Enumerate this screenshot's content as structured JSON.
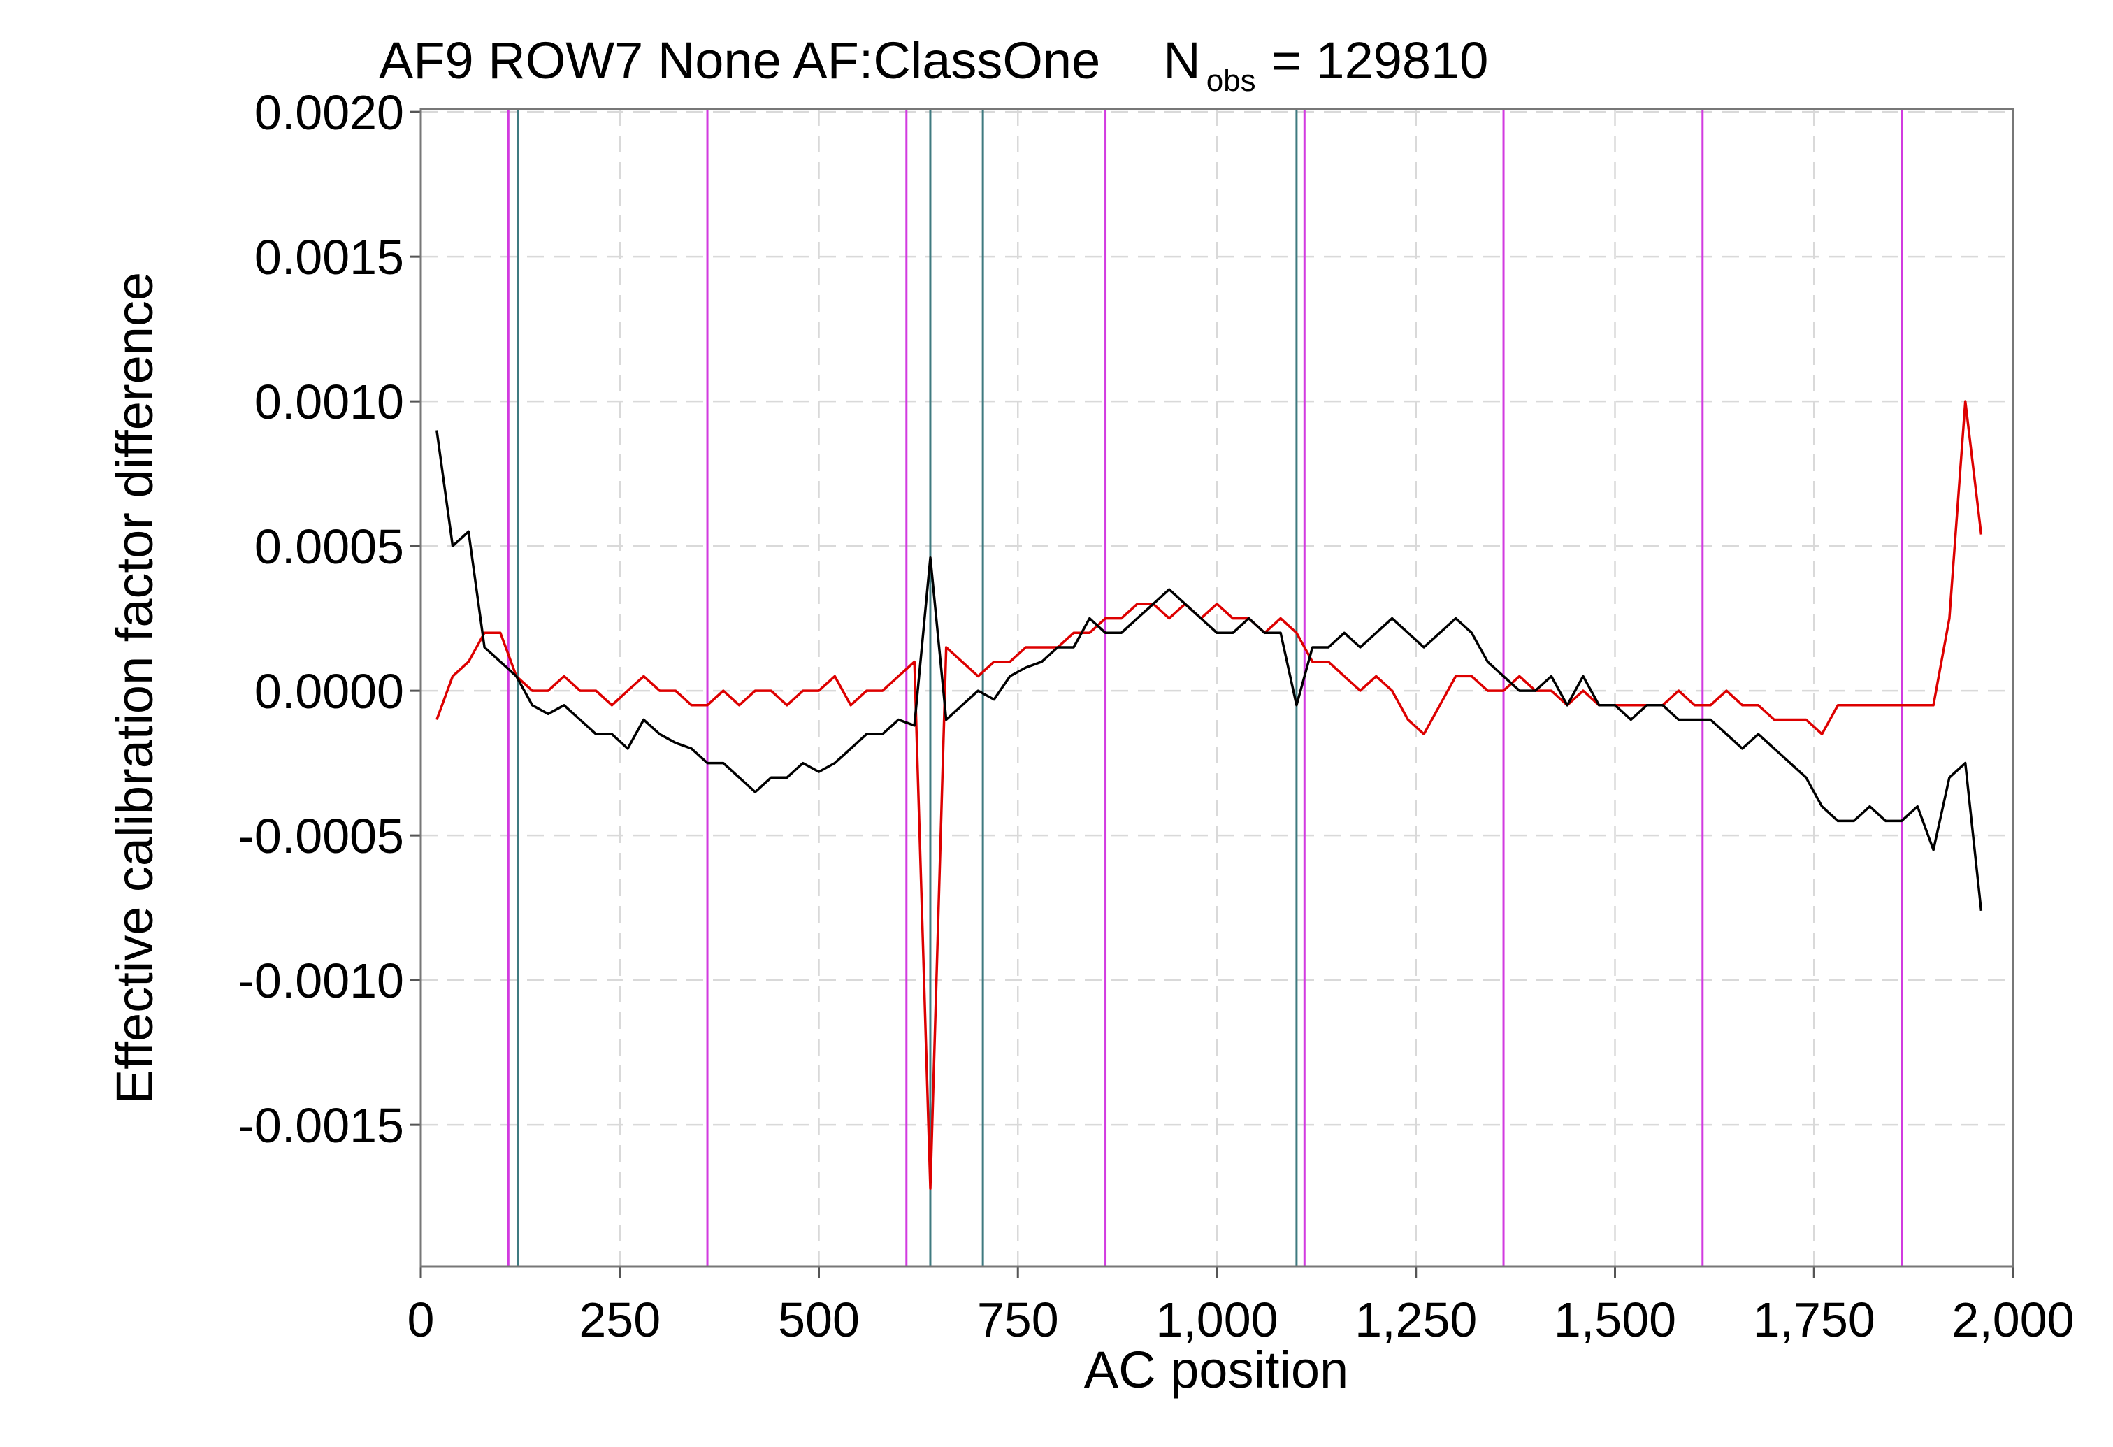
{
  "chart_data": {
    "type": "line",
    "title": "AF9 ROW7 None AF:ClassOne",
    "title_symbol": "N",
    "title_subscript": "obs",
    "title_suffix": "= 129810",
    "x_label": "AC position",
    "y_label": "Effective calibration factor difference",
    "xlim": [
      0,
      2000
    ],
    "ylim": [
      -0.00199,
      0.00201
    ],
    "xticks": [
      0,
      250,
      500,
      750,
      {
        "value": 1000,
        "label": "1,000"
      },
      {
        "value": 1250,
        "label": "1,250"
      },
      {
        "value": 1500,
        "label": "1,500"
      },
      {
        "value": 1750,
        "label": "1,750"
      },
      {
        "value": 2000,
        "label": "2,000"
      }
    ],
    "yticks": [
      {
        "value": -0.0015,
        "label": "-0.0015"
      },
      {
        "value": -0.001,
        "label": "-0.0010"
      },
      {
        "value": -0.0005,
        "label": "-0.0005"
      },
      {
        "value": 0,
        "label": "0.0000"
      },
      {
        "value": 0.0005,
        "label": "0.0005"
      },
      {
        "value": 0.001,
        "label": "0.0010"
      },
      {
        "value": 0.0015,
        "label": "0.0015"
      },
      {
        "value": 0.002,
        "label": "0.0020"
      }
    ],
    "grid": true,
    "vlines": [
      {
        "color": "#d23be0",
        "values": [
          110,
          360,
          610,
          860,
          1110,
          1360,
          1610,
          1860
        ]
      },
      {
        "color": "#3f7a80",
        "values": [
          122,
          640,
          706,
          1100
        ]
      }
    ],
    "x": [
      20,
      40,
      60,
      80,
      100,
      120,
      140,
      160,
      180,
      200,
      220,
      240,
      260,
      280,
      300,
      320,
      340,
      360,
      380,
      400,
      420,
      440,
      460,
      480,
      500,
      520,
      540,
      560,
      580,
      600,
      620,
      640,
      660,
      680,
      700,
      720,
      740,
      760,
      780,
      800,
      820,
      840,
      860,
      880,
      900,
      920,
      940,
      960,
      980,
      1000,
      1020,
      1040,
      1060,
      1080,
      1100,
      1120,
      1140,
      1160,
      1180,
      1200,
      1220,
      1240,
      1260,
      1280,
      1300,
      1320,
      1340,
      1360,
      1380,
      1400,
      1420,
      1440,
      1460,
      1480,
      1500,
      1520,
      1540,
      1560,
      1580,
      1600,
      1620,
      1640,
      1660,
      1680,
      1700,
      1720,
      1740,
      1760,
      1780,
      1800,
      1820,
      1840,
      1860,
      1880,
      1900,
      1920,
      1940,
      1960
    ],
    "series": [
      {
        "color": "#dd0000",
        "values": [
          -0.0001,
          5e-05,
          0.0001,
          0.0002,
          0.0002,
          5e-05,
          0,
          0,
          5e-05,
          0,
          0,
          -5e-05,
          0,
          5e-05,
          0,
          0,
          -5e-05,
          -5e-05,
          0,
          -5e-05,
          0,
          0,
          -5e-05,
          0,
          0,
          5e-05,
          -5e-05,
          0,
          0,
          5e-05,
          0.0001,
          -0.00172,
          0.00015,
          0.0001,
          5e-05,
          0.0001,
          0.0001,
          0.00015,
          0.00015,
          0.00015,
          0.0002,
          0.0002,
          0.00025,
          0.00025,
          0.0003,
          0.0003,
          0.00025,
          0.0003,
          0.00025,
          0.0003,
          0.00025,
          0.00025,
          0.0002,
          0.00025,
          0.0002,
          0.0001,
          0.0001,
          5e-05,
          0,
          5e-05,
          0,
          -0.0001,
          -0.00015,
          -5e-05,
          5e-05,
          5e-05,
          0,
          0,
          5e-05,
          0,
          0,
          -5e-05,
          0,
          -5e-05,
          -5e-05,
          -5e-05,
          -5e-05,
          -5e-05,
          0,
          -5e-05,
          -5e-05,
          0,
          -5e-05,
          -5e-05,
          -0.0001,
          -0.0001,
          -0.0001,
          -0.00015,
          -5e-05,
          -5e-05,
          -5e-05,
          -5e-05,
          -5e-05,
          -5e-05,
          -5e-05,
          0.00025,
          0.001,
          0.00054
        ]
      },
      {
        "color": "#000000",
        "values": [
          0.0009,
          0.0005,
          0.00055,
          0.00015,
          0.0001,
          5e-05,
          -5e-05,
          -8e-05,
          -5e-05,
          -0.0001,
          -0.00015,
          -0.00015,
          -0.0002,
          -0.0001,
          -0.00015,
          -0.00018,
          -0.0002,
          -0.00025,
          -0.00025,
          -0.0003,
          -0.00035,
          -0.0003,
          -0.0003,
          -0.00025,
          -0.00028,
          -0.00025,
          -0.0002,
          -0.00015,
          -0.00015,
          -0.0001,
          -0.00012,
          0.00046,
          -0.0001,
          -5e-05,
          0,
          -3e-05,
          5e-05,
          8e-05,
          0.0001,
          0.00015,
          0.00015,
          0.00025,
          0.0002,
          0.0002,
          0.00025,
          0.0003,
          0.00035,
          0.0003,
          0.00025,
          0.0002,
          0.0002,
          0.00025,
          0.0002,
          0.0002,
          -5e-05,
          0.00015,
          0.00015,
          0.0002,
          0.00015,
          0.0002,
          0.00025,
          0.0002,
          0.00015,
          0.0002,
          0.00025,
          0.0002,
          0.0001,
          5e-05,
          0,
          0,
          5e-05,
          -5e-05,
          5e-05,
          -5e-05,
          -5e-05,
          -0.0001,
          -5e-05,
          -5e-05,
          -0.0001,
          -0.0001,
          -0.0001,
          -0.00015,
          -0.0002,
          -0.00015,
          -0.0002,
          -0.00025,
          -0.0003,
          -0.0004,
          -0.00045,
          -0.00045,
          -0.0004,
          -0.00045,
          -0.00045,
          -0.0004,
          -0.00055,
          -0.0003,
          -0.00025,
          -0.00076
        ]
      }
    ]
  }
}
